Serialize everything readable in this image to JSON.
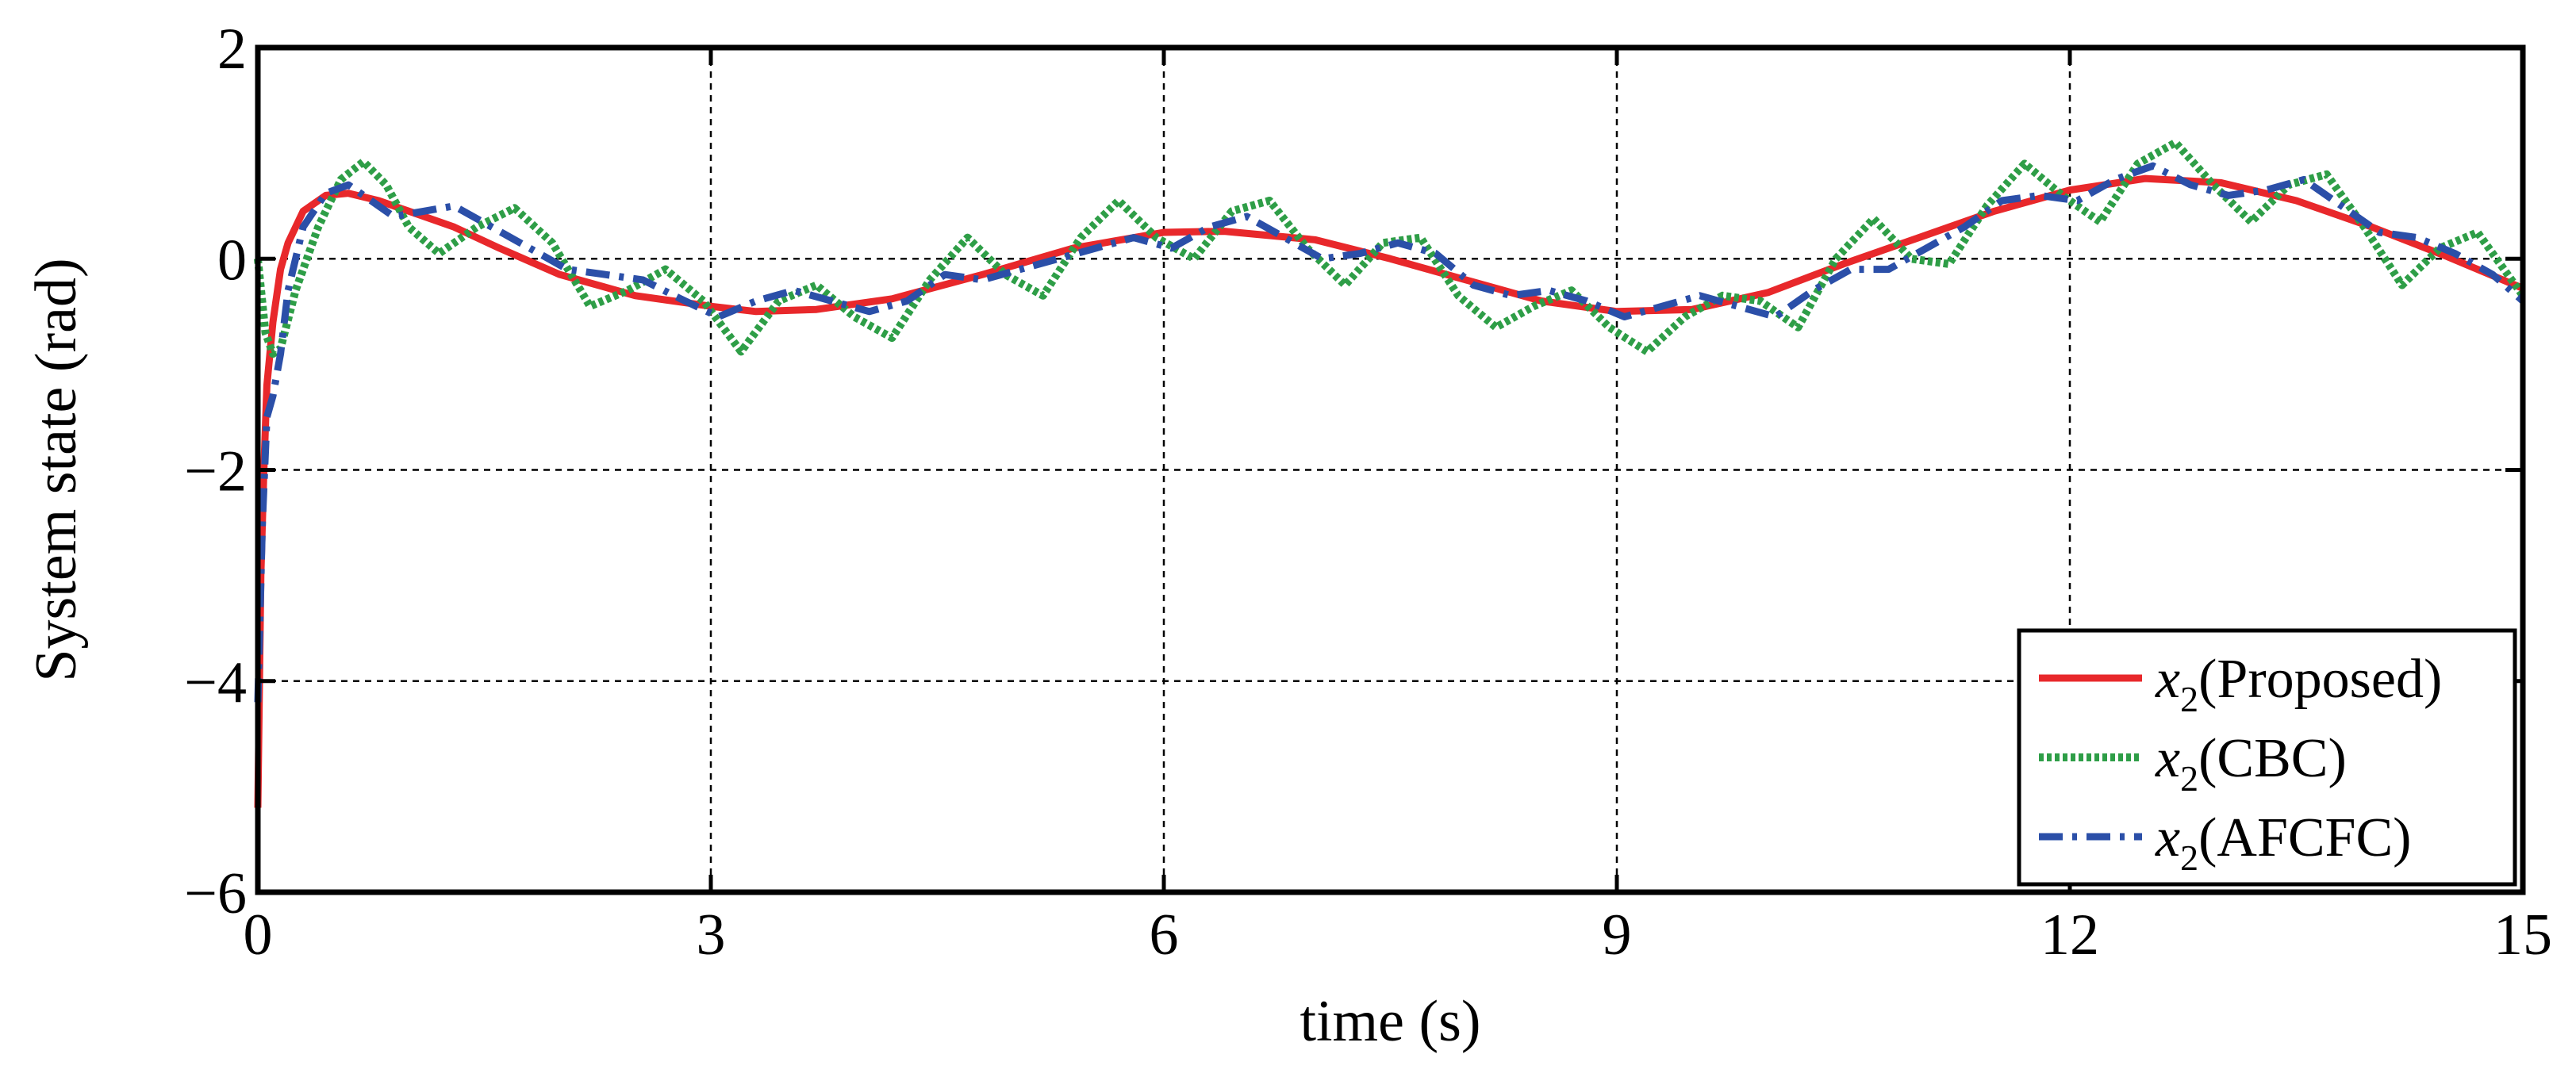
{
  "chart_data": {
    "type": "line",
    "title": "",
    "xlabel": "time (s)",
    "ylabel": "System state (rad)",
    "xlim": [
      0,
      15
    ],
    "ylim": [
      -6,
      2
    ],
    "xticks": [
      0,
      3,
      6,
      9,
      12,
      15
    ],
    "yticks": [
      2,
      0,
      -2,
      -4,
      -6
    ],
    "xtick_labels": [
      "0",
      "3",
      "6",
      "9",
      "12",
      "15"
    ],
    "ytick_labels": [
      "2",
      "0",
      "−2",
      "−4",
      "−6"
    ],
    "grid": true,
    "legend_position": "bottom-right",
    "series": [
      {
        "name": "x2(Proposed)",
        "legend_main": "x",
        "legend_sub": "2",
        "legend_suffix": "(Proposed)",
        "color": "#e8282b",
        "style": "solid",
        "x": [
          0,
          0.02,
          0.04,
          0.06,
          0.1,
          0.15,
          0.2,
          0.3,
          0.45,
          0.6,
          0.8,
          1.0,
          1.3,
          1.6,
          2.0,
          2.5,
          3.0,
          3.3,
          3.7,
          4.2,
          4.8,
          5.4,
          6.0,
          6.4,
          7.0,
          7.5,
          8.0,
          8.5,
          9.0,
          9.5,
          10.0,
          10.5,
          11.0,
          11.5,
          12.0,
          12.5,
          13.0,
          13.5,
          14.0,
          14.5,
          15.0
        ],
        "y": [
          -5.2,
          -3.0,
          -2.0,
          -1.2,
          -0.6,
          -0.1,
          0.15,
          0.45,
          0.6,
          0.62,
          0.55,
          0.45,
          0.3,
          0.1,
          -0.15,
          -0.35,
          -0.45,
          -0.5,
          -0.48,
          -0.38,
          -0.15,
          0.1,
          0.25,
          0.26,
          0.18,
          0.0,
          -0.2,
          -0.4,
          -0.5,
          -0.48,
          -0.32,
          -0.05,
          0.2,
          0.45,
          0.65,
          0.76,
          0.72,
          0.55,
          0.3,
          0.02,
          -0.28
        ]
      },
      {
        "name": "x2(CBC)",
        "legend_main": "x",
        "legend_sub": "2",
        "legend_suffix": "(CBC)",
        "color": "#2e9e47",
        "style": "dotted",
        "x": [
          0,
          0.05,
          0.1,
          0.15,
          0.25,
          0.4,
          0.55,
          0.7,
          0.85,
          1.0,
          1.2,
          1.45,
          1.7,
          1.95,
          2.2,
          2.45,
          2.7,
          2.95,
          3.2,
          3.45,
          3.7,
          3.95,
          4.2,
          4.45,
          4.7,
          4.95,
          5.2,
          5.45,
          5.7,
          5.95,
          6.2,
          6.45,
          6.7,
          6.95,
          7.2,
          7.45,
          7.7,
          7.95,
          8.2,
          8.45,
          8.7,
          8.95,
          9.2,
          9.45,
          9.7,
          9.95,
          10.2,
          10.45,
          10.7,
          10.95,
          11.2,
          11.45,
          11.7,
          11.95,
          12.2,
          12.45,
          12.7,
          12.95,
          13.2,
          13.45,
          13.7,
          13.95,
          14.2,
          14.45,
          14.7,
          15.0
        ],
        "y": [
          0.0,
          -0.7,
          -0.9,
          -0.85,
          -0.3,
          0.3,
          0.75,
          0.92,
          0.7,
          0.3,
          0.05,
          0.3,
          0.48,
          0.15,
          -0.45,
          -0.3,
          -0.1,
          -0.4,
          -0.88,
          -0.4,
          -0.25,
          -0.55,
          -0.75,
          -0.2,
          0.2,
          -0.15,
          -0.35,
          0.2,
          0.55,
          0.2,
          0.0,
          0.45,
          0.55,
          0.1,
          -0.25,
          0.15,
          0.2,
          -0.35,
          -0.65,
          -0.45,
          -0.3,
          -0.65,
          -0.88,
          -0.55,
          -0.35,
          -0.4,
          -0.65,
          0.0,
          0.38,
          0.0,
          -0.05,
          0.5,
          0.9,
          0.6,
          0.35,
          0.9,
          1.1,
          0.7,
          0.35,
          0.7,
          0.8,
          0.3,
          -0.25,
          0.1,
          0.25,
          -0.35
        ]
      },
      {
        "name": "x2(AFCFC)",
        "legend_main": "x",
        "legend_sub": "2",
        "legend_suffix": "(AFCFC)",
        "color": "#2b4fa8",
        "style": "dashdot",
        "x": [
          0,
          0.03,
          0.06,
          0.1,
          0.15,
          0.2,
          0.3,
          0.45,
          0.6,
          0.75,
          0.9,
          1.1,
          1.3,
          1.55,
          1.8,
          2.05,
          2.3,
          2.55,
          2.8,
          3.05,
          3.3,
          3.55,
          3.8,
          4.05,
          4.3,
          4.55,
          4.8,
          5.05,
          5.3,
          5.55,
          5.8,
          6.05,
          6.3,
          6.55,
          6.8,
          7.05,
          7.3,
          7.55,
          7.8,
          8.05,
          8.3,
          8.55,
          8.8,
          9.05,
          9.3,
          9.55,
          9.8,
          10.05,
          10.3,
          10.55,
          10.8,
          11.05,
          11.3,
          11.55,
          11.8,
          12.05,
          12.3,
          12.55,
          12.8,
          13.05,
          13.3,
          13.55,
          13.8,
          14.05,
          14.3,
          14.55,
          14.8,
          15.0
        ],
        "y": [
          -4.2,
          -2.5,
          -1.5,
          -1.3,
          -0.9,
          -0.3,
          0.3,
          0.62,
          0.7,
          0.55,
          0.4,
          0.45,
          0.5,
          0.3,
          0.1,
          -0.1,
          -0.15,
          -0.2,
          -0.38,
          -0.55,
          -0.4,
          -0.3,
          -0.4,
          -0.5,
          -0.4,
          -0.15,
          -0.2,
          -0.1,
          0.0,
          0.1,
          0.2,
          0.1,
          0.3,
          0.4,
          0.2,
          0.0,
          0.05,
          0.15,
          0.05,
          -0.25,
          -0.35,
          -0.3,
          -0.4,
          -0.55,
          -0.45,
          -0.35,
          -0.45,
          -0.55,
          -0.3,
          -0.1,
          -0.1,
          0.1,
          0.3,
          0.55,
          0.6,
          0.55,
          0.75,
          0.88,
          0.7,
          0.6,
          0.65,
          0.75,
          0.5,
          0.25,
          0.2,
          0.05,
          -0.15,
          -0.4
        ]
      }
    ]
  }
}
